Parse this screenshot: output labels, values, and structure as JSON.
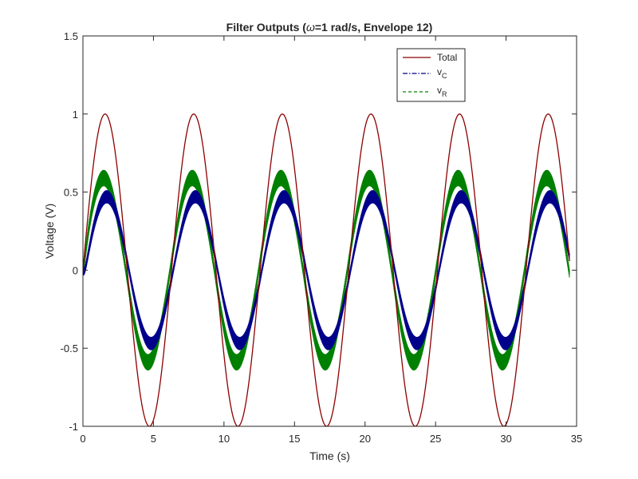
{
  "chart_data": {
    "type": "line",
    "title_parts": [
      "Filter Outputs (",
      "ω",
      "=1 rad/s, Envelope 12)"
    ],
    "xlabel": "Time (s)",
    "ylabel": "Voltage (V)",
    "xlim": [
      0,
      35
    ],
    "ylim": [
      -1,
      1.5
    ],
    "xticks": [
      0,
      5,
      10,
      15,
      20,
      25,
      30,
      35
    ],
    "xtick_labels": [
      "0",
      "5",
      "10",
      "15",
      "20",
      "25",
      "30",
      "35"
    ],
    "yticks": [
      -1,
      -0.5,
      0,
      0.5,
      1,
      1.5
    ],
    "ytick_labels": [
      "-1",
      "-0.5",
      "0",
      "0.5",
      "1",
      "1.5"
    ],
    "grid": false,
    "legend_position": "top-right",
    "x_end": 34.5,
    "series": [
      {
        "name": "Total",
        "legend_main": "Total",
        "legend_sub": "",
        "color": "#8b0000",
        "style": "solid",
        "amplitude": 1.0,
        "ripple": 0,
        "phase": 0
      },
      {
        "name": "vC",
        "legend_main": "v",
        "legend_sub": "C",
        "color": "#00008b",
        "style": "dashdot",
        "amplitude": 0.47,
        "ripple": 0.04,
        "phase": -0.12
      },
      {
        "name": "vR",
        "legend_main": "v",
        "legend_sub": "R",
        "color": "#008000",
        "style": "dashed",
        "amplitude": 0.59,
        "ripple": 0.05,
        "phase": 0.1
      }
    ]
  }
}
